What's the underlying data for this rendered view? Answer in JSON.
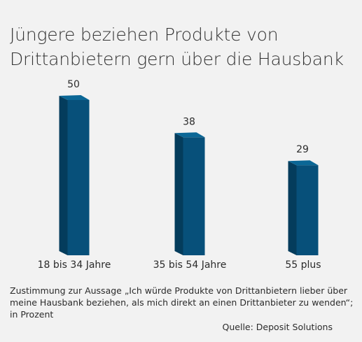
{
  "title_lines": [
    "Jüngere beziehen Produkte von",
    "Drittanbietern gern über die Hausbank"
  ],
  "footnote": "Zustimmung zur Aussage „Ich würde Produkte von Drittanbietern lieber über meine Hausbank beziehen, als mich direkt an einen Drittanbieter zu wenden“; in Prozent",
  "source": "Quelle: Deposit Solutions",
  "colors": {
    "bar_front": "#07507a",
    "bar_side": "#043c5c",
    "bar_top": "#0b6796"
  },
  "chart_data": {
    "type": "bar",
    "title": "Jüngere beziehen Produkte von Drittanbietern gern über die Hausbank",
    "categories": [
      "18 bis 34 Jahre",
      "35 bis 54 Jahre",
      "55 plus"
    ],
    "values": [
      50,
      38,
      29
    ],
    "ylim": [
      0,
      50
    ],
    "grid": false,
    "legend": "none",
    "data_labels": true
  }
}
